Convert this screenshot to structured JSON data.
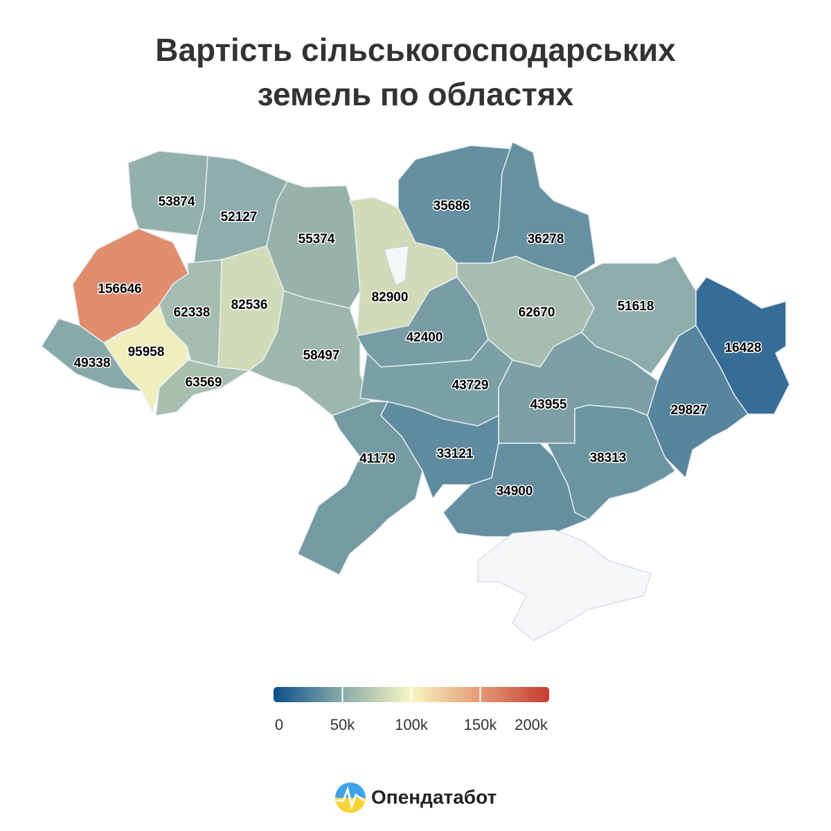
{
  "chart_data": {
    "type": "choropleth",
    "title": "Вартість сільськогосподарських земель по областях",
    "values": [
      53874,
      52127,
      55374,
      82900,
      35686,
      36278,
      156646,
      62338,
      82536,
      95958,
      49338,
      63569,
      58497,
      42400,
      62670,
      51618,
      16428,
      43729,
      43955,
      29827,
      41179,
      33121,
      34900,
      38313
    ],
    "colorscale": [
      "#0b4f8c",
      "#8aaaa9",
      "#f8f5c0",
      "#e49a77",
      "#c63b2f"
    ],
    "lim": [
      0,
      200000
    ],
    "ticks": [
      0,
      {
        "value": 50000,
        "label": "50k"
      },
      {
        "value": 100000,
        "label": "100k"
      },
      {
        "value": 150000,
        "label": "150k"
      },
      {
        "value": 200000,
        "label": "200k"
      }
    ]
  },
  "footer": {
    "brand": "Опендатабот"
  }
}
